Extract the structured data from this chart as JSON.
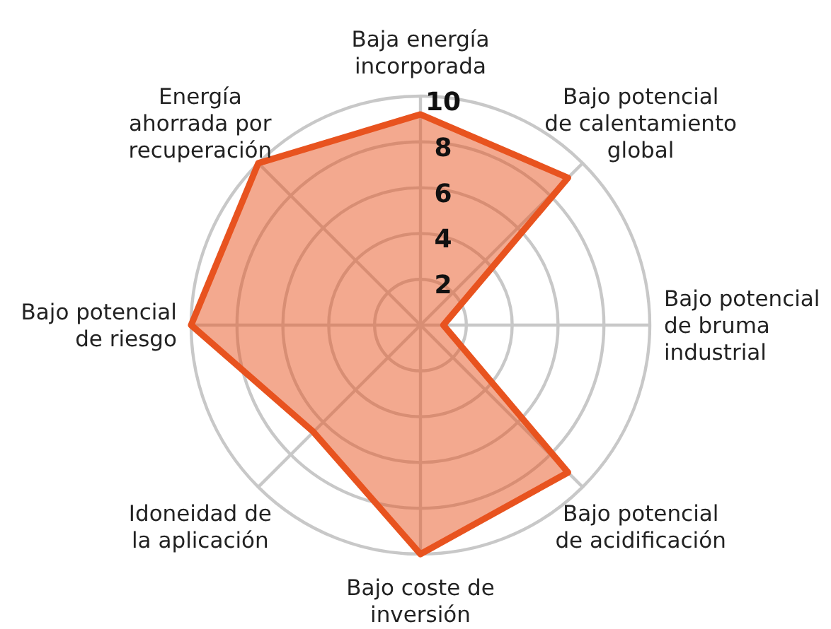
{
  "chart_data": {
    "type": "radar",
    "categories": [
      "Baja energía\nincorporada",
      "Bajo potencial\nde calentamiento\nglobal",
      "Bajo potencial\nde bruma\nindustrial",
      "Bajo potencial\nde acidificación",
      "Bajo coste de\ninversión",
      "Idoneidad de\nla aplicación",
      "Bajo potencial\nde riesgo",
      "Energía\nahorrada por\nrecuperación"
    ],
    "series": [
      {
        "color": "#e8531f",
        "values": [
          9.2,
          9.1,
          1,
          9.1,
          10,
          6.6,
          10,
          10
        ]
      }
    ],
    "ylim": [
      0,
      10
    ],
    "yticks": [
      2,
      4,
      6,
      8,
      10
    ],
    "grid": true,
    "marker": "none",
    "line_style": "solid"
  }
}
